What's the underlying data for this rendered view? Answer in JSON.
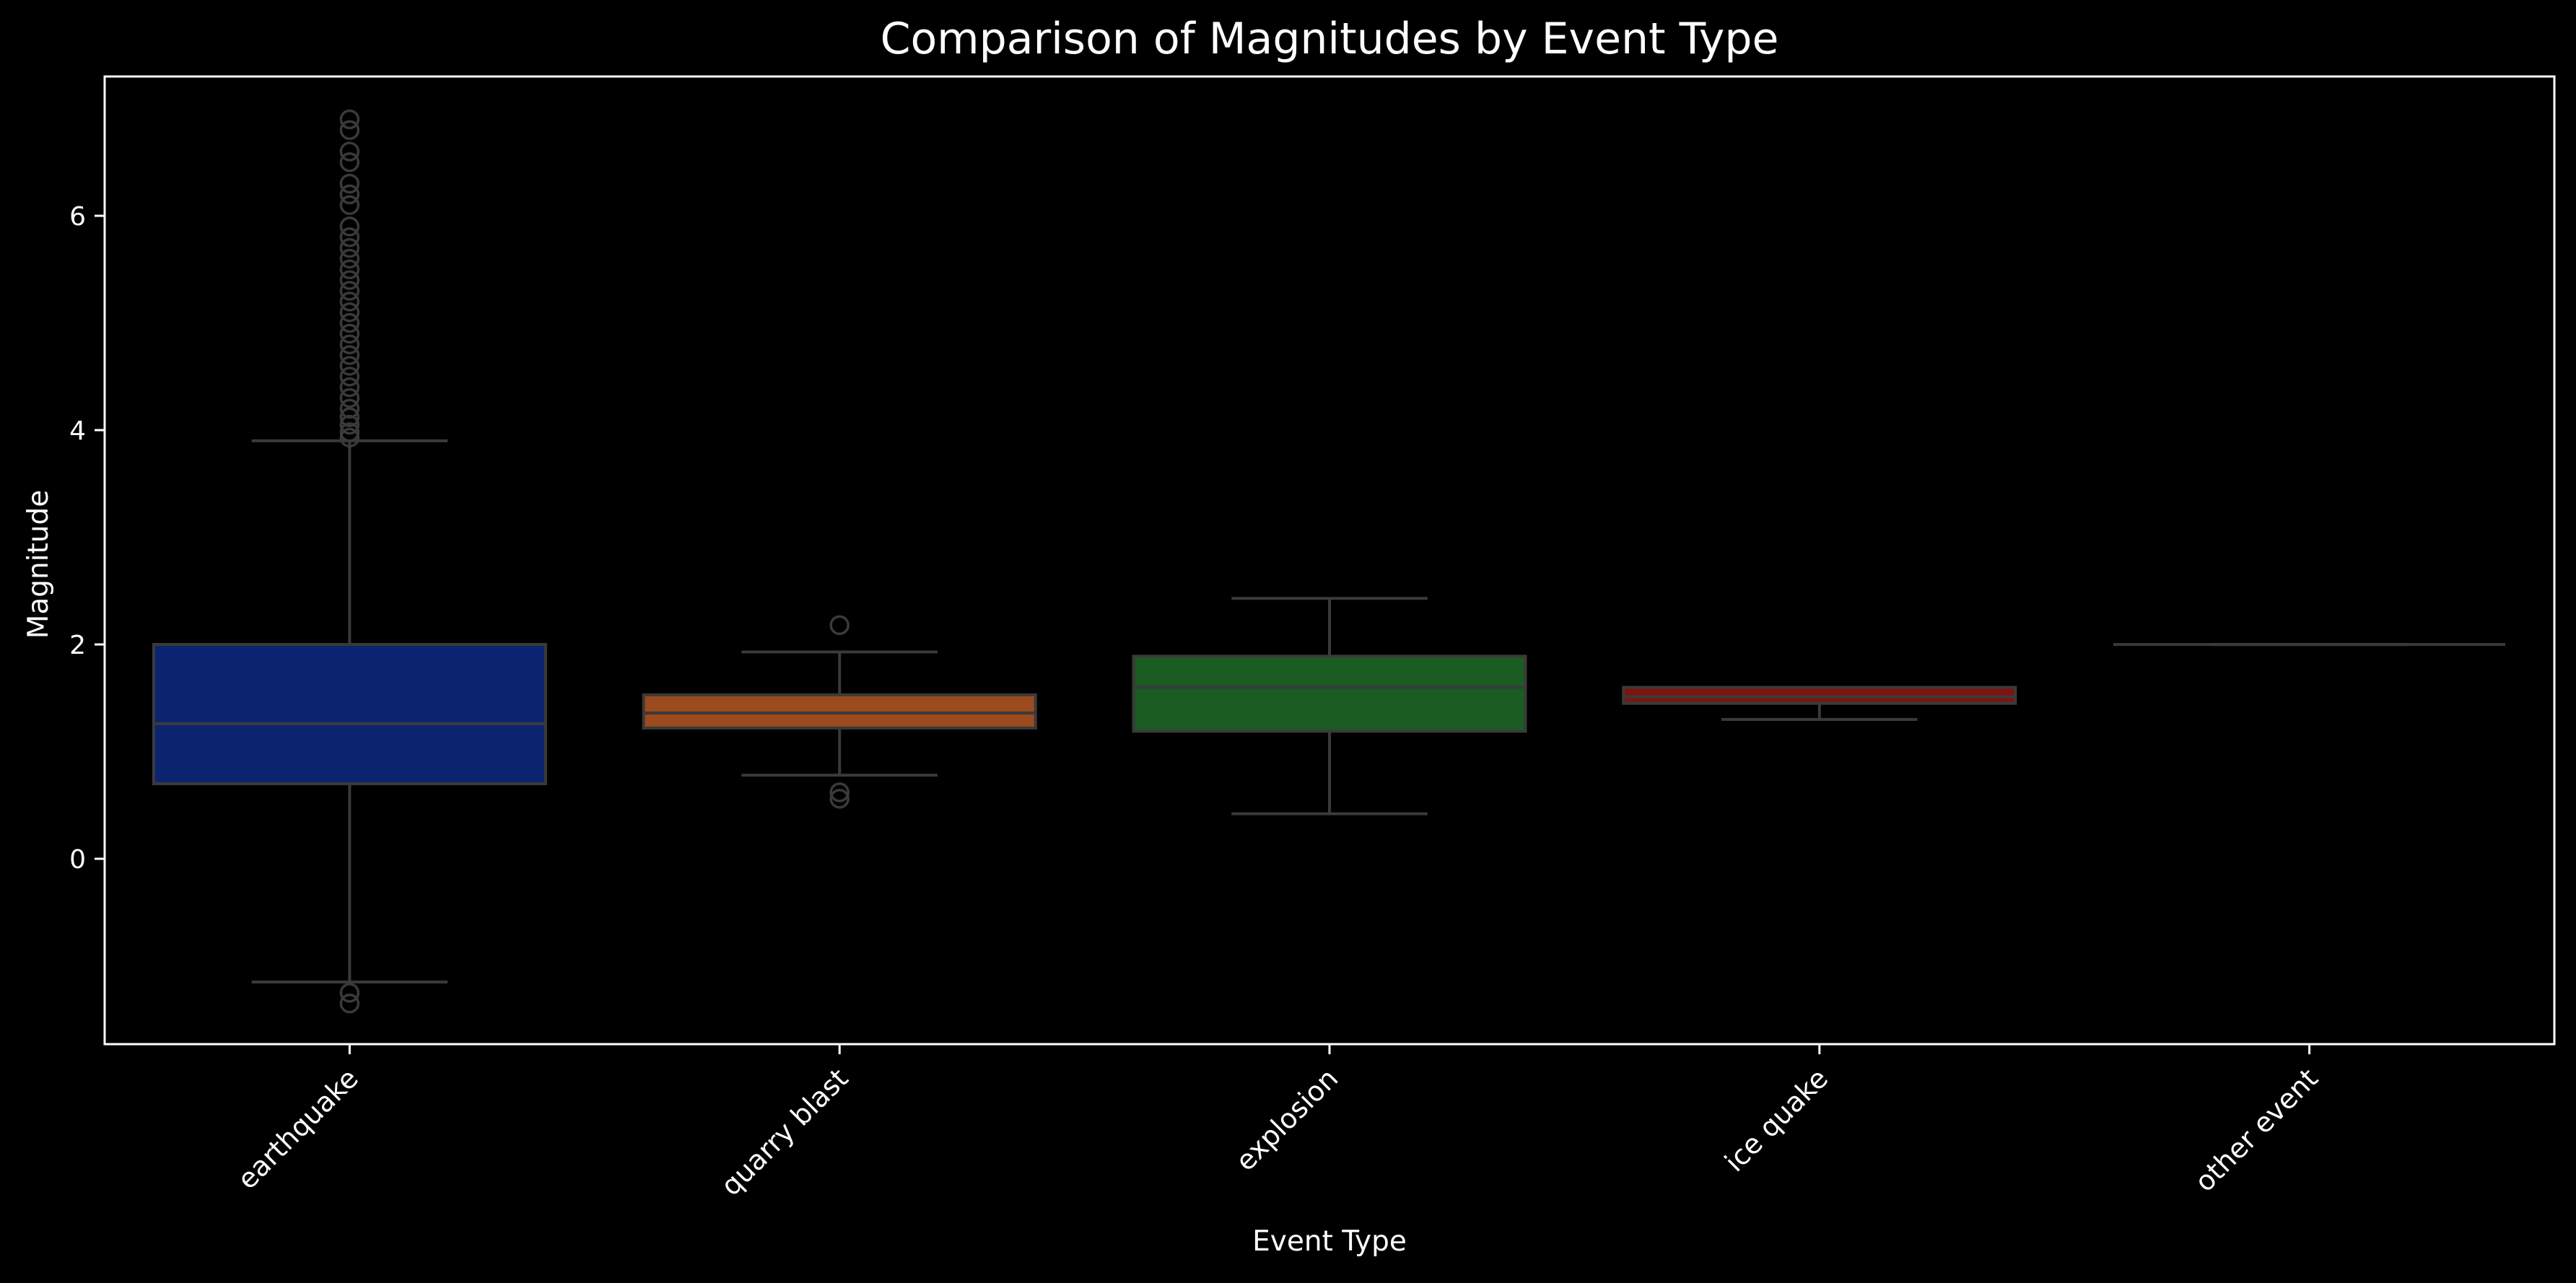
{
  "chart_data": {
    "type": "box",
    "title": "Comparison of Magnitudes by Event Type",
    "xlabel": "Event Type",
    "ylabel": "Magnitude",
    "ylim": [
      -1.73,
      7.3
    ],
    "yticks": [
      0,
      2,
      4,
      6
    ],
    "grid": false,
    "background_color": "#000000",
    "axes_color": "#ffffff",
    "whisker_color": "#3a3a3a",
    "categories": [
      "earthquake",
      "quarry blast",
      "explosion",
      "ice quake",
      "other event"
    ],
    "boxes": [
      {
        "category": "earthquake",
        "color": "#0c2470",
        "whisker_low": -1.15,
        "q1": 0.7,
        "median": 1.26,
        "q3": 2.0,
        "whisker_high": 3.9,
        "outliers": [
          -1.35,
          -1.25,
          3.93,
          3.98,
          4.05,
          4.12,
          4.2,
          4.3,
          4.4,
          4.5,
          4.6,
          4.7,
          4.8,
          4.9,
          5.0,
          5.1,
          5.2,
          5.3,
          5.4,
          5.5,
          5.6,
          5.7,
          5.8,
          5.9,
          6.1,
          6.2,
          6.3,
          6.5,
          6.6,
          6.8,
          6.9
        ]
      },
      {
        "category": "quarry blast",
        "color": "#9b4b1d",
        "whisker_low": 0.78,
        "q1": 1.22,
        "median": 1.36,
        "q3": 1.53,
        "whisker_high": 1.93,
        "outliers": [
          0.56,
          0.62,
          2.18
        ]
      },
      {
        "category": "explosion",
        "color": "#1a5c22",
        "whisker_low": 0.42,
        "q1": 1.19,
        "median": 1.6,
        "q3": 1.89,
        "whisker_high": 2.43,
        "outliers": []
      },
      {
        "category": "ice quake",
        "color": "#7c1410",
        "whisker_low": 1.3,
        "q1": 1.45,
        "median": 1.51,
        "q3": 1.6,
        "whisker_high": 1.6,
        "outliers": []
      },
      {
        "category": "other event",
        "color": "#444444",
        "whisker_low": 2.0,
        "q1": 2.0,
        "median": 2.0,
        "q3": 2.0,
        "whisker_high": 2.0,
        "outliers": []
      }
    ]
  }
}
